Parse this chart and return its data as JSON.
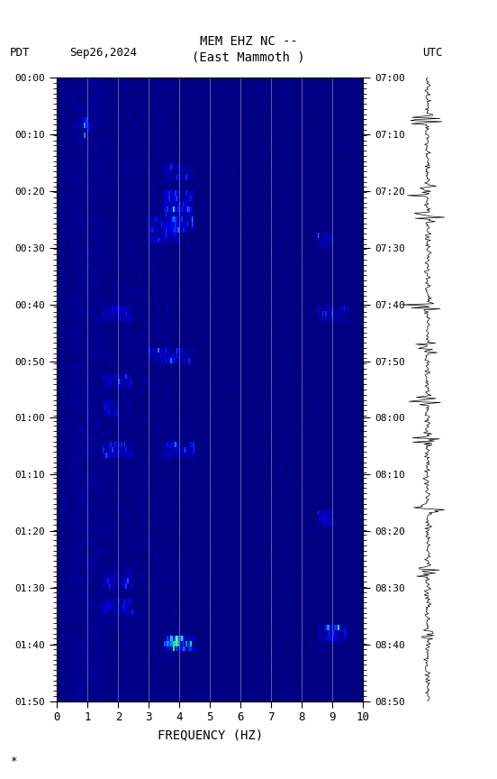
{
  "title_line1": "MEM EHZ NC --",
  "title_line2": "(East Mammoth )",
  "left_label": "PDT",
  "date_label": "Sep26,2024",
  "right_label": "UTC",
  "xlabel": "FREQUENCY (HZ)",
  "freq_min": 0,
  "freq_max": 10,
  "time_labels_left": [
    "00:00",
    "00:10",
    "00:20",
    "00:30",
    "00:40",
    "00:50",
    "01:00",
    "01:10",
    "01:20",
    "01:30",
    "01:40",
    "01:50"
  ],
  "time_labels_right": [
    "07:00",
    "07:10",
    "07:20",
    "07:30",
    "07:40",
    "07:50",
    "08:00",
    "08:10",
    "08:20",
    "08:30",
    "08:40",
    "08:50"
  ],
  "n_time_steps": 120,
  "n_freq_bins": 200,
  "bg_color": "#000080",
  "fig_bg": "#ffffff",
  "colormap": "jet",
  "vmin": 0.0,
  "vmax": 1.0,
  "seed": 42,
  "vertical_lines_freq": [
    1,
    2,
    3,
    4,
    5,
    6,
    7,
    8,
    9
  ],
  "vertical_line_color": "#c0c0c0",
  "vertical_line_alpha": 0.5,
  "footnote": "*"
}
